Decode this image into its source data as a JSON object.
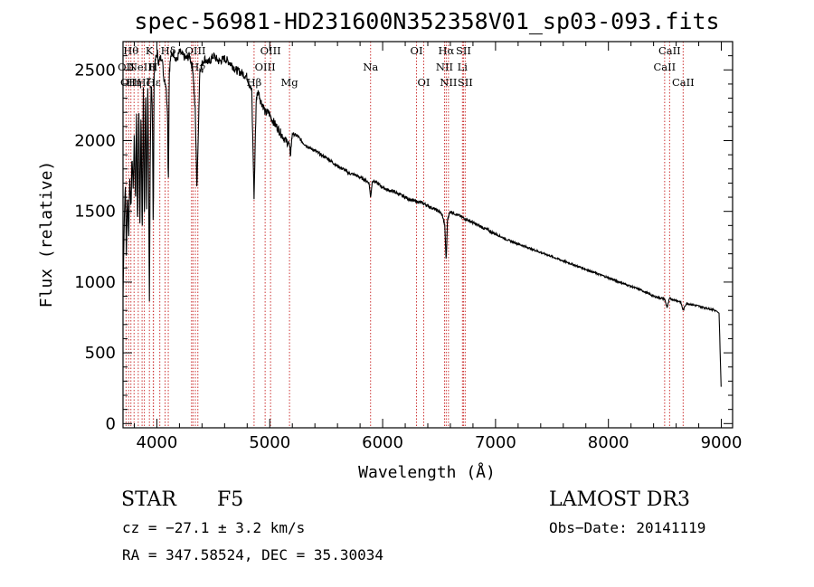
{
  "chart_data": {
    "type": "line",
    "title": "spec-56981-HD231600N352358V01_sp03-093.fits",
    "xlabel": "Wavelength (Å)",
    "ylabel": "Flux (relative)",
    "xlim": [
      3700,
      9100
    ],
    "ylim": [
      -30,
      2700
    ],
    "xticks": [
      4000,
      5000,
      6000,
      7000,
      8000,
      9000
    ],
    "yticks": [
      0,
      500,
      1000,
      1500,
      2000,
      2500
    ],
    "series": [
      {
        "name": "flux",
        "x": [
          3700,
          3710,
          3720,
          3730,
          3740,
          3750,
          3760,
          3770,
          3780,
          3790,
          3800,
          3810,
          3820,
          3830,
          3840,
          3850,
          3860,
          3870,
          3880,
          3890,
          3900,
          3910,
          3920,
          3930,
          3934,
          3940,
          3950,
          3960,
          3968,
          3975,
          3985,
          3995,
          4005,
          4015,
          4030,
          4045,
          4060,
          4080,
          4095,
          4101,
          4110,
          4125,
          4150,
          4175,
          4200,
          4230,
          4260,
          4290,
          4320,
          4340,
          4355,
          4380,
          4420,
          4460,
          4500,
          4550,
          4600,
          4650,
          4700,
          4750,
          4800,
          4840,
          4861,
          4880,
          4900,
          4920,
          4940,
          4960,
          4990,
          5020,
          5060,
          5100,
          5140,
          5170,
          5183,
          5200,
          5250,
          5300,
          5350,
          5400,
          5450,
          5500,
          5550,
          5600,
          5650,
          5700,
          5750,
          5800,
          5850,
          5880,
          5893,
          5910,
          5950,
          6000,
          6050,
          6100,
          6150,
          6200,
          6250,
          6300,
          6350,
          6400,
          6450,
          6500,
          6530,
          6550,
          6563,
          6575,
          6600,
          6650,
          6700,
          6750,
          6800,
          6850,
          6900,
          6950,
          7000,
          7100,
          7200,
          7300,
          7400,
          7500,
          7600,
          7700,
          7800,
          7900,
          8000,
          8100,
          8200,
          8300,
          8400,
          8498,
          8520,
          8542,
          8560,
          8600,
          8640,
          8662,
          8690,
          8750,
          8800,
          8850,
          8900,
          8950,
          8980,
          8990,
          9000
        ],
        "values": [
          900,
          1400,
          1700,
          1200,
          1650,
          1300,
          1750,
          1500,
          1900,
          1650,
          2050,
          1550,
          2200,
          1350,
          2300,
          1400,
          2250,
          1300,
          2350,
          1400,
          2400,
          1500,
          2450,
          1300,
          850,
          1800,
          2450,
          2200,
          1300,
          2450,
          2550,
          2600,
          2620,
          2550,
          2580,
          2600,
          2450,
          2400,
          2200,
          1650,
          2500,
          2600,
          2620,
          2560,
          2630,
          2600,
          2580,
          2600,
          2500,
          2200,
          1650,
          2500,
          2580,
          2550,
          2600,
          2560,
          2580,
          2550,
          2500,
          2480,
          2450,
          2350,
          1600,
          2300,
          2350,
          2280,
          2250,
          2200,
          2200,
          2150,
          2100,
          2050,
          2000,
          1980,
          1900,
          2050,
          2030,
          1980,
          1950,
          1930,
          1900,
          1880,
          1850,
          1820,
          1800,
          1770,
          1760,
          1740,
          1720,
          1700,
          1600,
          1720,
          1700,
          1670,
          1650,
          1640,
          1620,
          1600,
          1580,
          1570,
          1560,
          1540,
          1520,
          1500,
          1470,
          1400,
          1150,
          1450,
          1500,
          1480,
          1460,
          1440,
          1420,
          1400,
          1380,
          1360,
          1340,
          1300,
          1270,
          1240,
          1210,
          1180,
          1150,
          1120,
          1090,
          1060,
          1030,
          1000,
          970,
          940,
          900,
          880,
          820,
          885,
          880,
          870,
          860,
          800,
          850,
          840,
          830,
          820,
          810,
          800,
          780,
          500,
          200
        ]
      }
    ],
    "line_markers": [
      {
        "wl": 3727,
        "label": "OII",
        "row": 1,
        "color": "#cc3333"
      },
      {
        "wl": 3750,
        "label": "OII",
        "row": 2,
        "color": "#cc3333"
      },
      {
        "wl": 3770,
        "label": "Hθ",
        "row": 0,
        "color": "#cc3333"
      },
      {
        "wl": 3798,
        "label": "Hη",
        "row": 2,
        "color": "#cc3333"
      },
      {
        "wl": 3835,
        "label": "",
        "row": 0,
        "color": "#cc3333"
      },
      {
        "wl": 3869,
        "label": "NeIII",
        "row": 1,
        "color": "#cc3333"
      },
      {
        "wl": 3889,
        "label": "Hζ",
        "row": 2,
        "color": "#cc3333"
      },
      {
        "wl": 3934,
        "label": "K",
        "row": 0,
        "color": "#cc3333"
      },
      {
        "wl": 3968,
        "label": "H",
        "row": 1,
        "color": "#cc3333"
      },
      {
        "wl": 3970,
        "label": "Hε",
        "row": 2,
        "color": "#cc3333"
      },
      {
        "wl": 4026,
        "label": "",
        "row": 1,
        "color": "#cc3333"
      },
      {
        "wl": 4073,
        "label": "",
        "row": 1,
        "color": "#cc3333"
      },
      {
        "wl": 4101,
        "label": "Hδ",
        "row": 0,
        "color": "#cc3333"
      },
      {
        "wl": 4307,
        "label": "",
        "row": 1,
        "color": "#cc3333"
      },
      {
        "wl": 4320,
        "label": "",
        "row": 1,
        "color": "#cc3333"
      },
      {
        "wl": 4341,
        "label": "OIII",
        "row": 0,
        "color": "#cc3333"
      },
      {
        "wl": 4363,
        "label": "Hγ",
        "row": 1,
        "color": "#cc3333"
      },
      {
        "wl": 4861,
        "label": "Hβ",
        "row": 2,
        "color": "#cc3333"
      },
      {
        "wl": 4959,
        "label": "OIII",
        "row": 1,
        "color": "#cc3333"
      },
      {
        "wl": 5007,
        "label": "OIII",
        "row": 0,
        "color": "#cc3333"
      },
      {
        "wl": 5175,
        "label": "Mg",
        "row": 2,
        "color": "#cc3333"
      },
      {
        "wl": 5893,
        "label": "Na",
        "row": 1,
        "color": "#cc3333"
      },
      {
        "wl": 6300,
        "label": "OI",
        "row": 0,
        "color": "#cc3333"
      },
      {
        "wl": 6364,
        "label": "OI",
        "row": 2,
        "color": "#cc3333"
      },
      {
        "wl": 6548,
        "label": "NII",
        "row": 1,
        "color": "#cc3333"
      },
      {
        "wl": 6563,
        "label": "Hα",
        "row": 0,
        "color": "#cc3333"
      },
      {
        "wl": 6583,
        "label": "NII",
        "row": 2,
        "color": "#cc3333"
      },
      {
        "wl": 6707,
        "label": "Li",
        "row": 1,
        "color": "#cc3333"
      },
      {
        "wl": 6716,
        "label": "SII",
        "row": 0,
        "color": "#cc3333"
      },
      {
        "wl": 6731,
        "label": "SII",
        "row": 2,
        "color": "#cc3333"
      },
      {
        "wl": 8498,
        "label": "CaII",
        "row": 1,
        "color": "#cc3333"
      },
      {
        "wl": 8542,
        "label": "CaII",
        "row": 0,
        "color": "#cc3333"
      },
      {
        "wl": 8662,
        "label": "CaII",
        "row": 2,
        "color": "#cc3333"
      }
    ]
  },
  "footer": {
    "object_class": "STAR",
    "subclass": "F5",
    "survey": "LAMOST DR3",
    "redshift": "cz = −27.1 ± 3.2 km/s",
    "obs_date": "Obs−Date: 20141119",
    "coords": "RA = 347.58524, DEC =  35.30034"
  }
}
